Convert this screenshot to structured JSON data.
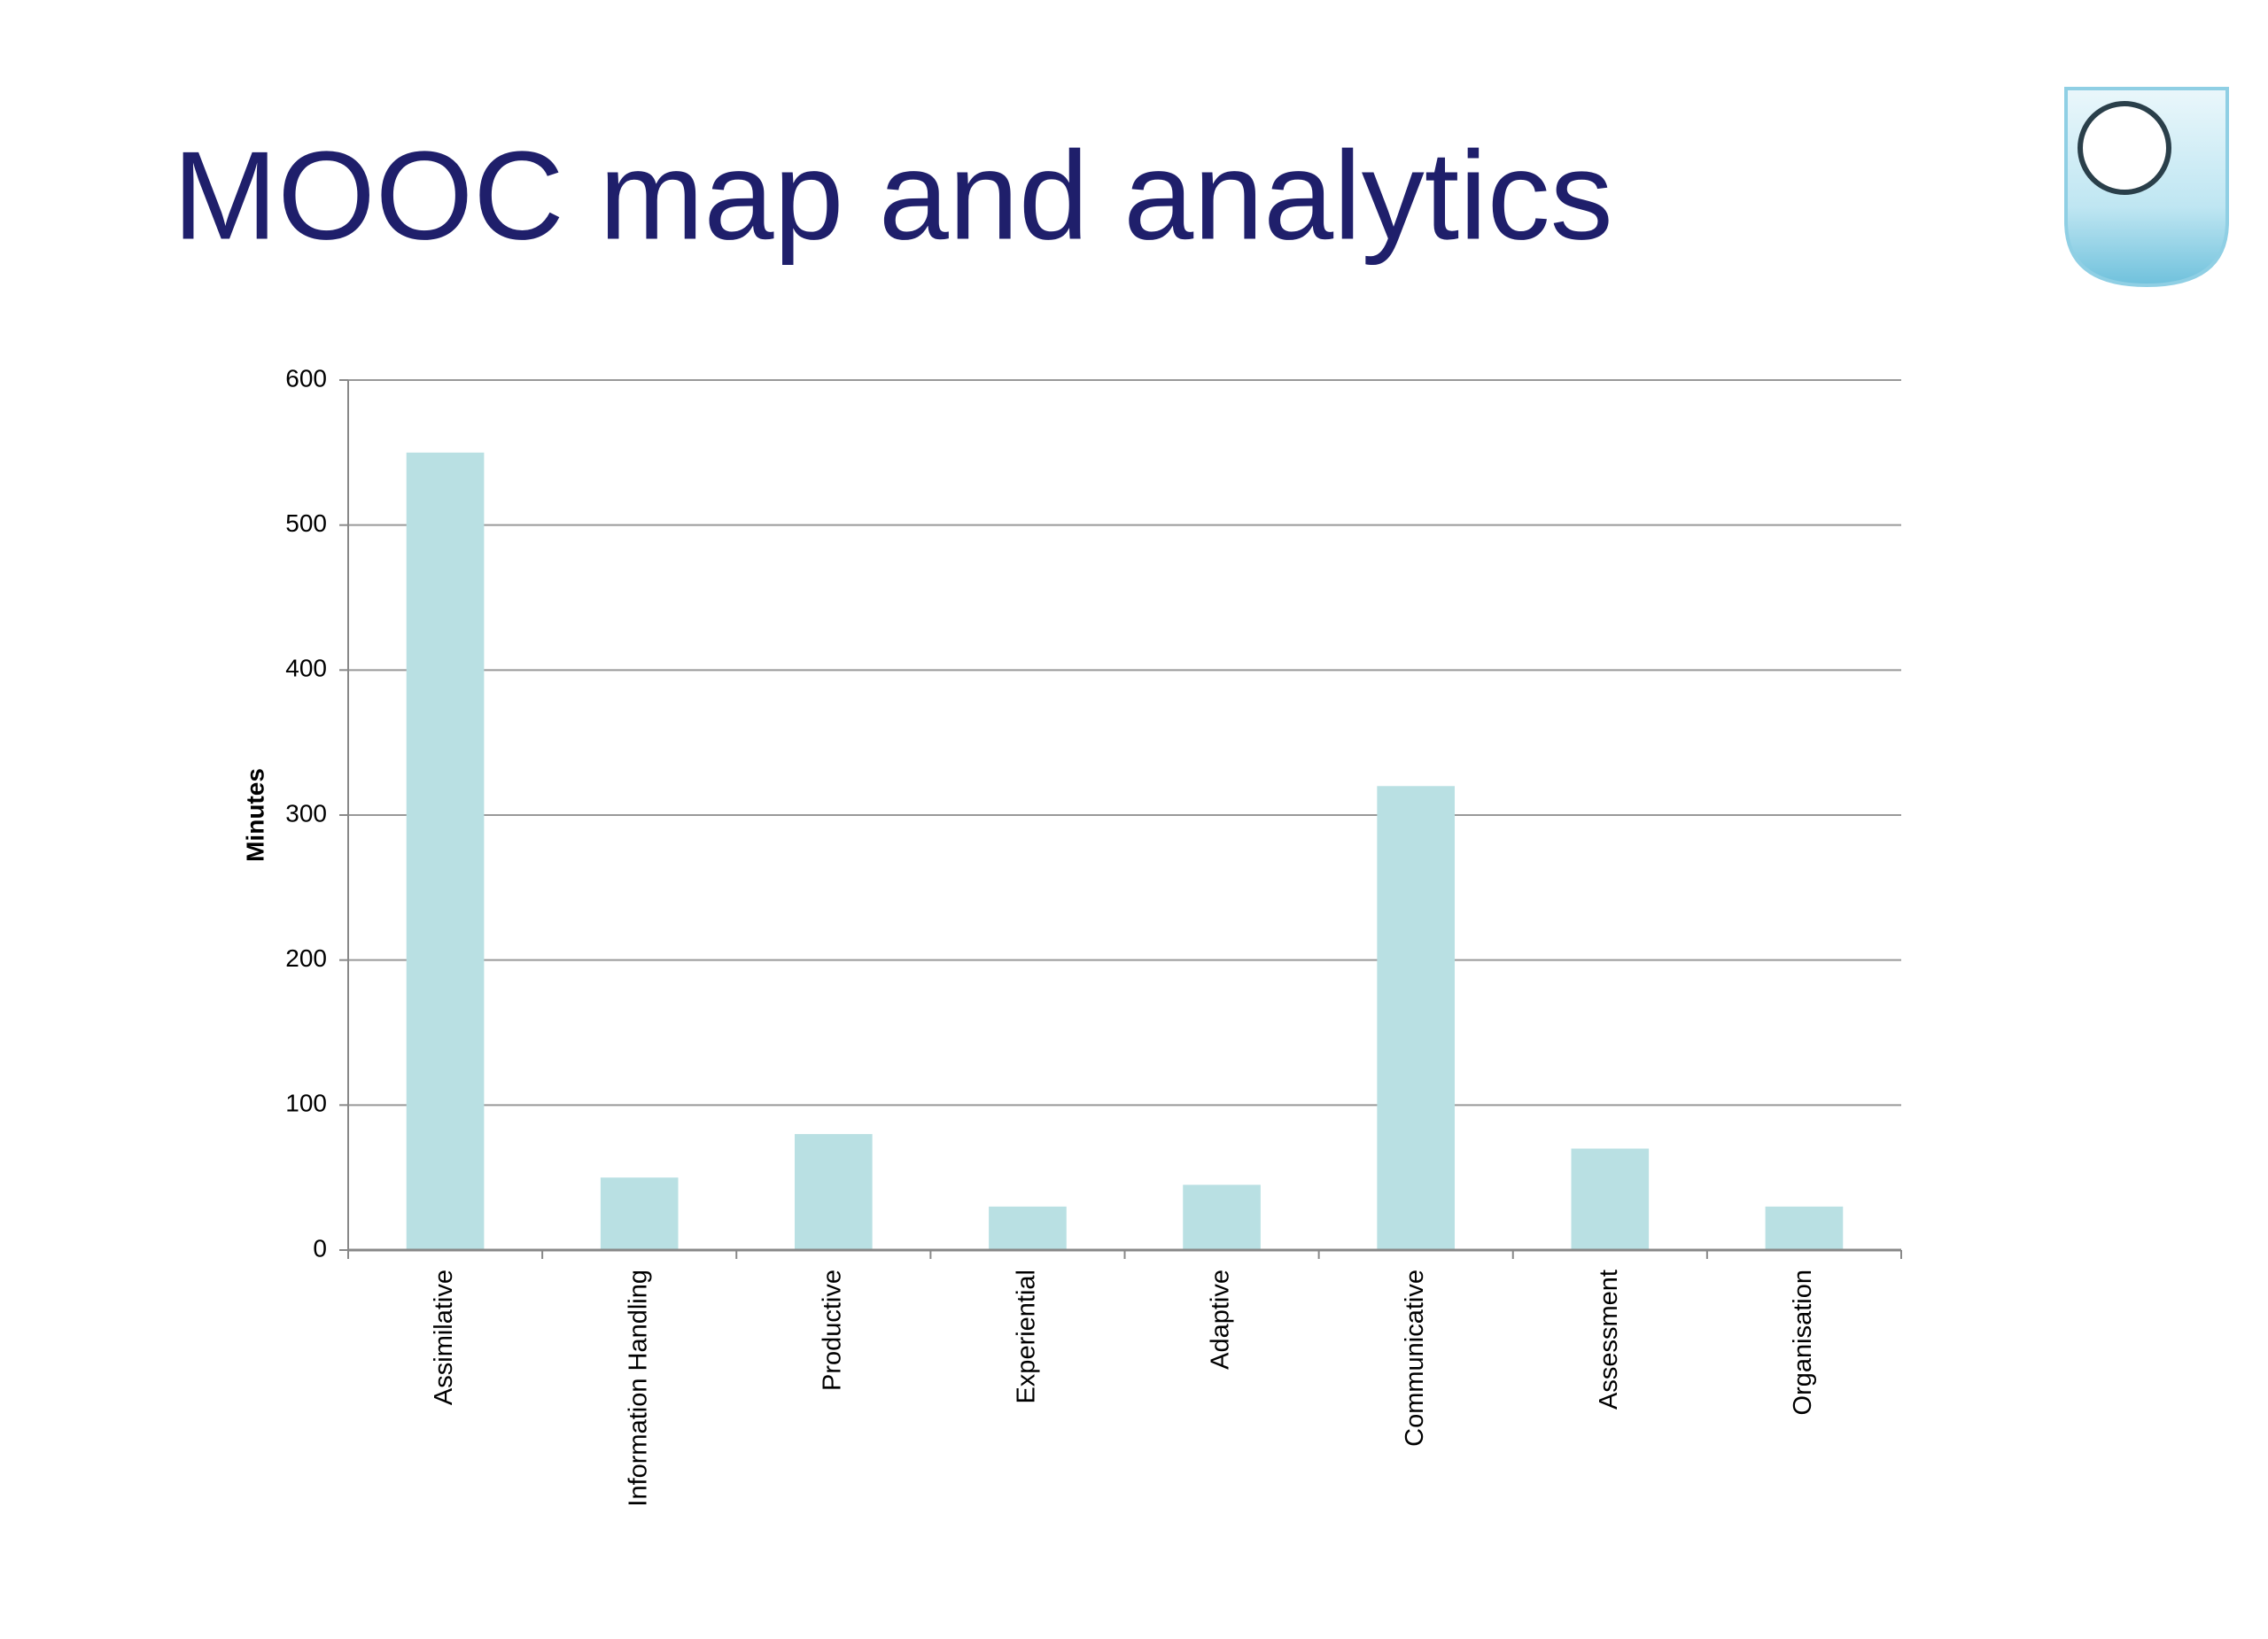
{
  "chart_data": {
    "type": "bar",
    "title": "MOOC map and analytics",
    "y_label": "Minutes",
    "categories": [
      "Assimilative",
      "Information Handling",
      "Productive",
      "Experiential",
      "Adaptive",
      "Communicative",
      "Assessment",
      "Organisation"
    ],
    "values": [
      550,
      50,
      80,
      30,
      45,
      320,
      70,
      30
    ],
    "color": "#b9e0e3",
    "ylim": [
      0,
      600
    ],
    "yticks": [
      0,
      100,
      200,
      300,
      400,
      500,
      600
    ],
    "grid": true
  }
}
